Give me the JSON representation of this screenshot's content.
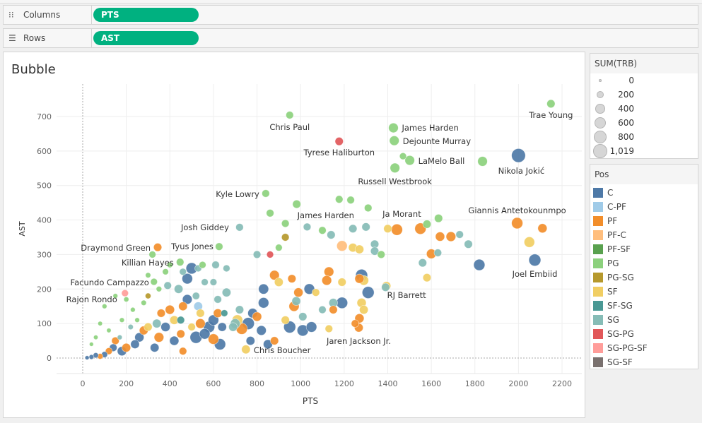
{
  "shelves": {
    "columns_label": "Columns",
    "columns_pill": "PTS",
    "rows_label": "Rows",
    "rows_pill": "AST"
  },
  "sheet_title": "Bubble",
  "size_legend": {
    "title": "SUM(TRB)",
    "items": [
      "0",
      "200",
      "400",
      "600",
      "800",
      "1,019"
    ]
  },
  "color_legend": {
    "title": "Pos",
    "items": [
      {
        "label": "C",
        "color": "#4e79a7"
      },
      {
        "label": "C-PF",
        "color": "#a0cbe8"
      },
      {
        "label": "PF",
        "color": "#f28e2b"
      },
      {
        "label": "PF-C",
        "color": "#ffbe7d"
      },
      {
        "label": "PF-SF",
        "color": "#59a14f"
      },
      {
        "label": "PG",
        "color": "#8cd17d"
      },
      {
        "label": "PG-SG",
        "color": "#b6992d"
      },
      {
        "label": "SF",
        "color": "#f1ce63"
      },
      {
        "label": "SF-SG",
        "color": "#499894"
      },
      {
        "label": "SG",
        "color": "#86bcb6"
      },
      {
        "label": "SG-PG",
        "color": "#e15759"
      },
      {
        "label": "SG-PG-SF",
        "color": "#ff9d9a"
      },
      {
        "label": "SG-SF",
        "color": "#79706e"
      }
    ]
  },
  "chart_data": {
    "type": "scatter",
    "title": "Bubble",
    "xlabel": "PTS",
    "ylabel": "AST",
    "xlim": [
      -110,
      2300
    ],
    "ylim": [
      -110,
      800
    ],
    "xticks": [
      0,
      200,
      400,
      600,
      800,
      1000,
      1200,
      1400,
      1600,
      1800,
      2000,
      2200
    ],
    "yticks": [
      0,
      100,
      200,
      300,
      400,
      500,
      600,
      700
    ],
    "size_field": "SUM(TRB)",
    "color_field": "Pos",
    "grid": true,
    "labeled": [
      {
        "name": "Trae Young",
        "pts": 2149,
        "ast": 737,
        "trb": 250,
        "pos": "PG"
      },
      {
        "name": "Chris Paul",
        "pts": 950,
        "ast": 704,
        "trb": 200,
        "pos": "PG"
      },
      {
        "name": "James Harden",
        "pts": 1426,
        "ast": 667,
        "trb": 400,
        "pos": "PG"
      },
      {
        "name": "Dejounte Murray",
        "pts": 1430,
        "ast": 630,
        "trb": 400,
        "pos": "PG"
      },
      {
        "name": "Tyrese Haliburton",
        "pts": 1177,
        "ast": 628,
        "trb": 250,
        "pos": "SG-PG"
      },
      {
        "name": "LaMelo Ball",
        "pts": 1501,
        "ast": 573,
        "trb": 400,
        "pos": "PG"
      },
      {
        "name": "Nikola Jokić",
        "pts": 2000,
        "ast": 587,
        "trb": 1019,
        "pos": "C"
      },
      {
        "name": "Russell Westbrook",
        "pts": 1433,
        "ast": 551,
        "trb": 400,
        "pos": "PG"
      },
      {
        "name": "Kyle Lowry",
        "pts": 840,
        "ast": 477,
        "trb": 200,
        "pos": "PG"
      },
      {
        "name": "James Harden",
        "pts": 982,
        "ast": 446,
        "trb": 250,
        "pos": "PG"
      },
      {
        "name": "Ja Morant",
        "pts": 1442,
        "ast": 372,
        "trb": 600,
        "pos": "PF"
      },
      {
        "name": "Giannis Antetokounmpo",
        "pts": 1994,
        "ast": 391,
        "trb": 600,
        "pos": "PF"
      },
      {
        "name": "Josh Giddey",
        "pts": 720,
        "ast": 379,
        "trb": 200,
        "pos": "SG"
      },
      {
        "name": "Draymond Green",
        "pts": 344,
        "ast": 321,
        "trb": 250,
        "pos": "PF"
      },
      {
        "name": "Tyus Jones",
        "pts": 626,
        "ast": 323,
        "trb": 200,
        "pos": "PG"
      },
      {
        "name": "Killian Hayes",
        "pts": 447,
        "ast": 278,
        "trb": 200,
        "pos": "PG"
      },
      {
        "name": "Facundo Campazzo",
        "pts": 327,
        "ast": 221,
        "trb": 150,
        "pos": "PG"
      },
      {
        "name": "Rajon Rondo",
        "pts": 194,
        "ast": 188,
        "trb": 150,
        "pos": "SG-PG-SF"
      },
      {
        "name": "Joel Embiid",
        "pts": 2075,
        "ast": 284,
        "trb": 700,
        "pos": "C"
      },
      {
        "name": "RJ Barrett",
        "pts": 1394,
        "ast": 209,
        "trb": 300,
        "pos": "SF"
      },
      {
        "name": "Jaren Jackson Jr.",
        "pts": 1267,
        "ast": 88,
        "trb": 300,
        "pos": "PF"
      },
      {
        "name": "Chris Boucher",
        "pts": 749,
        "ast": 25,
        "trb": 300,
        "pos": "SF"
      }
    ],
    "points": [
      [
        1470,
        585,
        150,
        "PG"
      ],
      [
        1835,
        570,
        400,
        "PG"
      ],
      [
        1177,
        460,
        200,
        "PG"
      ],
      [
        1230,
        458,
        200,
        "PG"
      ],
      [
        1310,
        435,
        200,
        "PG"
      ],
      [
        1550,
        375,
        600,
        "PF"
      ],
      [
        1633,
        405,
        250,
        "PG"
      ],
      [
        1580,
        388,
        250,
        "PG"
      ],
      [
        2110,
        376,
        350,
        "PF"
      ],
      [
        2050,
        336,
        500,
        "SF"
      ],
      [
        1770,
        330,
        250,
        "SG"
      ],
      [
        1730,
        358,
        200,
        "SG"
      ],
      [
        1820,
        270,
        600,
        "C"
      ],
      [
        1690,
        352,
        400,
        "PF"
      ],
      [
        1640,
        352,
        350,
        "PF"
      ],
      [
        1600,
        302,
        400,
        "PF"
      ],
      [
        1630,
        305,
        200,
        "SG"
      ],
      [
        1560,
        276,
        250,
        "SG"
      ],
      [
        1580,
        233,
        250,
        "SF"
      ],
      [
        860,
        420,
        200,
        "PG"
      ],
      [
        930,
        390,
        200,
        "PG"
      ],
      [
        1030,
        380,
        200,
        "SG"
      ],
      [
        1100,
        370,
        200,
        "PG"
      ],
      [
        1140,
        357,
        250,
        "SG"
      ],
      [
        1240,
        375,
        250,
        "SG"
      ],
      [
        1300,
        380,
        250,
        "SG"
      ],
      [
        1190,
        325,
        500,
        "PF-C"
      ],
      [
        1240,
        320,
        300,
        "SF"
      ],
      [
        1270,
        315,
        300,
        "SF"
      ],
      [
        1340,
        330,
        250,
        "SG"
      ],
      [
        1340,
        310,
        250,
        "SG"
      ],
      [
        1370,
        300,
        200,
        "PG"
      ],
      [
        1400,
        375,
        250,
        "SF"
      ],
      [
        930,
        350,
        200,
        "PG-SG"
      ],
      [
        860,
        300,
        150,
        "SG-PG"
      ],
      [
        900,
        320,
        150,
        "PG"
      ],
      [
        800,
        300,
        200,
        "SG"
      ],
      [
        1130,
        250,
        400,
        "PF"
      ],
      [
        1120,
        225,
        400,
        "PF"
      ],
      [
        1280,
        240,
        700,
        "C"
      ],
      [
        1290,
        225,
        400,
        "SF"
      ],
      [
        1270,
        230,
        350,
        "PF"
      ],
      [
        1190,
        220,
        250,
        "SF"
      ],
      [
        1390,
        205,
        250,
        "SG"
      ],
      [
        1310,
        190,
        700,
        "C"
      ],
      [
        1190,
        160,
        600,
        "C"
      ],
      [
        1280,
        160,
        350,
        "SF"
      ],
      [
        1290,
        140,
        300,
        "SF"
      ],
      [
        1270,
        115,
        350,
        "PF"
      ],
      [
        1250,
        100,
        200,
        "PF"
      ],
      [
        1130,
        85,
        200,
        "SF"
      ],
      [
        1040,
        200,
        500,
        "C"
      ],
      [
        960,
        230,
        250,
        "PF"
      ],
      [
        990,
        190,
        350,
        "PF"
      ],
      [
        970,
        150,
        450,
        "PF"
      ],
      [
        930,
        110,
        250,
        "SF"
      ],
      [
        900,
        220,
        300,
        "SF"
      ],
      [
        880,
        240,
        400,
        "PF"
      ],
      [
        830,
        200,
        450,
        "C"
      ],
      [
        830,
        160,
        500,
        "C"
      ],
      [
        800,
        120,
        350,
        "PF"
      ],
      [
        780,
        130,
        400,
        "C"
      ],
      [
        760,
        100,
        700,
        "C"
      ],
      [
        710,
        110,
        500,
        "SF"
      ],
      [
        700,
        100,
        400,
        "SG"
      ],
      [
        690,
        90,
        300,
        "SG"
      ],
      [
        730,
        85,
        600,
        "PF"
      ],
      [
        720,
        140,
        250,
        "SG"
      ],
      [
        660,
        190,
        300,
        "SG"
      ],
      [
        660,
        260,
        150,
        "SG"
      ],
      [
        620,
        170,
        200,
        "SG"
      ],
      [
        620,
        130,
        300,
        "PF"
      ],
      [
        600,
        110,
        500,
        "C"
      ],
      [
        580,
        90,
        600,
        "C"
      ],
      [
        600,
        55,
        500,
        "PF"
      ],
      [
        630,
        40,
        600,
        "C"
      ],
      [
        540,
        130,
        250,
        "SF"
      ],
      [
        540,
        100,
        400,
        "PF"
      ],
      [
        560,
        70,
        500,
        "C"
      ],
      [
        520,
        60,
        700,
        "C"
      ],
      [
        500,
        260,
        600,
        "C"
      ],
      [
        480,
        230,
        500,
        "C"
      ],
      [
        440,
        200,
        300,
        "SG"
      ],
      [
        460,
        150,
        300,
        "PF"
      ],
      [
        480,
        170,
        400,
        "C"
      ],
      [
        400,
        140,
        350,
        "PF"
      ],
      [
        420,
        110,
        300,
        "SF"
      ],
      [
        380,
        90,
        350,
        "C"
      ],
      [
        360,
        130,
        250,
        "PF"
      ],
      [
        340,
        100,
        300,
        "SG"
      ],
      [
        300,
        90,
        250,
        "SF"
      ],
      [
        280,
        80,
        300,
        "PF"
      ],
      [
        260,
        60,
        350,
        "C"
      ],
      [
        240,
        40,
        300,
        "C"
      ],
      [
        200,
        30,
        300,
        "PF"
      ],
      [
        180,
        20,
        350,
        "C"
      ],
      [
        150,
        50,
        200,
        "PF"
      ],
      [
        140,
        30,
        200,
        "C"
      ],
      [
        120,
        20,
        150,
        "PF"
      ],
      [
        100,
        10,
        100,
        "C"
      ],
      [
        80,
        5,
        80,
        "PF"
      ],
      [
        60,
        8,
        60,
        "C"
      ],
      [
        40,
        3,
        40,
        "C"
      ],
      [
        20,
        1,
        20,
        "C"
      ],
      [
        350,
        60,
        400,
        "PF"
      ],
      [
        330,
        30,
        300,
        "C"
      ],
      [
        420,
        50,
        350,
        "C"
      ],
      [
        450,
        70,
        250,
        "PF"
      ],
      [
        460,
        20,
        200,
        "PF"
      ],
      [
        500,
        90,
        200,
        "SF"
      ],
      [
        640,
        90,
        300,
        "C"
      ],
      [
        770,
        50,
        300,
        "C"
      ],
      [
        820,
        80,
        400,
        "C"
      ],
      [
        850,
        40,
        350,
        "C"
      ],
      [
        880,
        50,
        250,
        "PF"
      ],
      [
        950,
        90,
        700,
        "C"
      ],
      [
        1010,
        80,
        600,
        "C"
      ],
      [
        1050,
        90,
        500,
        "C"
      ],
      [
        1010,
        120,
        250,
        "SG"
      ],
      [
        980,
        165,
        300,
        "SG"
      ],
      [
        1070,
        190,
        200,
        "SF"
      ],
      [
        1100,
        140,
        200,
        "SG"
      ],
      [
        1150,
        140,
        250,
        "PF"
      ],
      [
        1150,
        160,
        300,
        "SG"
      ],
      [
        100,
        150,
        40,
        "PG"
      ],
      [
        150,
        180,
        40,
        "PG"
      ],
      [
        200,
        170,
        50,
        "PG"
      ],
      [
        230,
        140,
        40,
        "PG"
      ],
      [
        250,
        110,
        40,
        "PG"
      ],
      [
        80,
        100,
        30,
        "PG"
      ],
      [
        120,
        80,
        30,
        "PG"
      ],
      [
        60,
        60,
        30,
        "PG"
      ],
      [
        40,
        40,
        20,
        "PG"
      ],
      [
        180,
        110,
        40,
        "PG"
      ],
      [
        280,
        160,
        60,
        "PG"
      ],
      [
        300,
        240,
        60,
        "PG"
      ],
      [
        400,
        270,
        80,
        "PG"
      ],
      [
        380,
        250,
        100,
        "PG"
      ],
      [
        350,
        200,
        70,
        "PG"
      ],
      [
        300,
        180,
        80,
        "PG-SG"
      ],
      [
        170,
        60,
        40,
        "SG"
      ],
      [
        220,
        90,
        60,
        "SG"
      ],
      [
        390,
        210,
        200,
        "SG"
      ],
      [
        460,
        250,
        150,
        "SG"
      ],
      [
        320,
        300,
        150,
        "PG"
      ],
      [
        530,
        260,
        150,
        "SG"
      ],
      [
        550,
        270,
        150,
        "PG"
      ],
      [
        560,
        220,
        150,
        "SG"
      ],
      [
        520,
        180,
        180,
        "SG"
      ],
      [
        450,
        110,
        200,
        "SF-SG"
      ],
      [
        650,
        130,
        150,
        "SF-SG"
      ],
      [
        600,
        220,
        150,
        "SG"
      ],
      [
        610,
        270,
        200,
        "SG"
      ],
      [
        530,
        150,
        300,
        "C-PF"
      ]
    ]
  }
}
